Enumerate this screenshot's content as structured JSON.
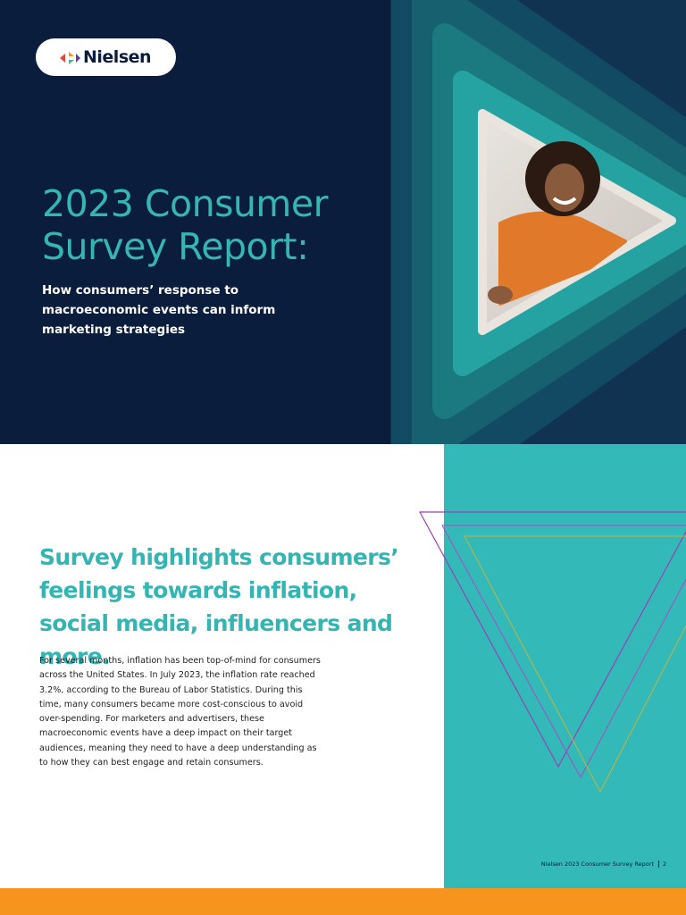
{
  "logo": {
    "text": "Nielsen"
  },
  "cover": {
    "title": "2023 Consumer Survey Report:",
    "subtitle": "How consumers’ response to macroeconomic events can inform marketing strategies"
  },
  "section": {
    "heading": "Survey highlights consumers’ feelings towards inflation, social media, influencers and more.",
    "body": "For several months, inflation has been top-of-mind for consumers across the United States. In July 2023, the inflation rate reached 3.2%, according to the Bureau of Labor Statistics. During this time, many consumers became more cost-conscious to avoid over-spending. For marketers and advertisers, these macroeconomic events have a deep impact on their target audiences, meaning they need to have a deep understanding as to how they can best engage and retain consumers."
  },
  "footer": {
    "text": "Nielsen 2023 Consumer Survey Report",
    "page": "2"
  }
}
